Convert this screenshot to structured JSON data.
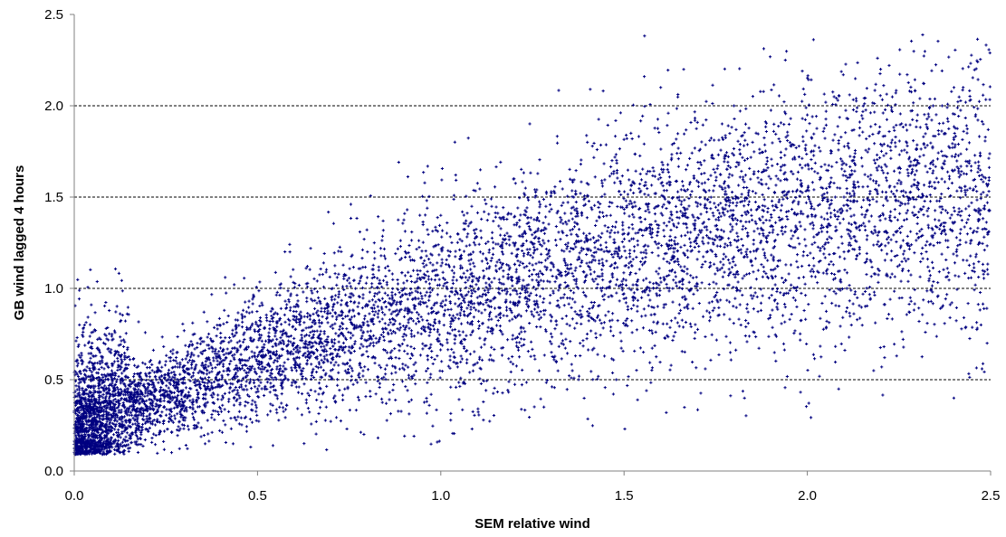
{
  "chart_data": {
    "type": "scatter",
    "title": "",
    "xlabel": "SEM relative wind",
    "ylabel": "GB wind lagged 4 hours",
    "xlim": [
      0.0,
      2.5
    ],
    "ylim": [
      0.0,
      2.5
    ],
    "xticks": [
      "0.0",
      "0.5",
      "1.0",
      "1.5",
      "2.0",
      "2.5"
    ],
    "yticks": [
      "0.0",
      "0.5",
      "1.0",
      "1.5",
      "2.0",
      "2.5"
    ],
    "grid": "horizontal dashed at major y ticks",
    "legend": "none",
    "marker_color": "#000080",
    "marker": "plus",
    "approx_point_count": 8000,
    "density_profile": [
      {
        "x_range": [
          0.0,
          0.15
        ],
        "y_center": 0.3,
        "note": "densest cluster near origin"
      },
      {
        "x_range": [
          0.15,
          0.8
        ],
        "y_center": 0.55
      },
      {
        "x_range": [
          0.8,
          1.5
        ],
        "y_center": 1.1
      },
      {
        "x_range": [
          1.5,
          2.5
        ],
        "y_center": 1.6
      }
    ],
    "series": [
      {
        "points": [
          [
            0.02,
            0.18
          ],
          [
            0.05,
            0.22
          ],
          [
            0.08,
            0.15
          ],
          [
            0.12,
            0.35
          ],
          [
            0.03,
            0.5
          ],
          [
            0.2,
            0.45
          ],
          [
            0.25,
            0.6
          ],
          [
            0.3,
            0.25
          ],
          [
            0.4,
            0.7
          ],
          [
            0.5,
            0.45
          ],
          [
            0.6,
            0.9
          ],
          [
            0.7,
            0.55
          ],
          [
            0.8,
            1.2
          ],
          [
            0.9,
            0.75
          ],
          [
            1.0,
            1.4
          ],
          [
            1.1,
            0.95
          ],
          [
            1.2,
            1.6
          ],
          [
            1.3,
            1.1
          ],
          [
            1.4,
            1.8
          ],
          [
            1.5,
            1.3
          ],
          [
            1.6,
            2.1
          ],
          [
            1.7,
            1.45
          ],
          [
            1.8,
            2.0
          ],
          [
            1.9,
            1.6
          ],
          [
            2.0,
            1.95
          ],
          [
            2.1,
            1.2
          ],
          [
            2.2,
            2.2
          ],
          [
            2.3,
            1.7
          ],
          [
            2.4,
            2.1
          ],
          [
            2.48,
            1.9
          ]
        ]
      }
    ]
  }
}
